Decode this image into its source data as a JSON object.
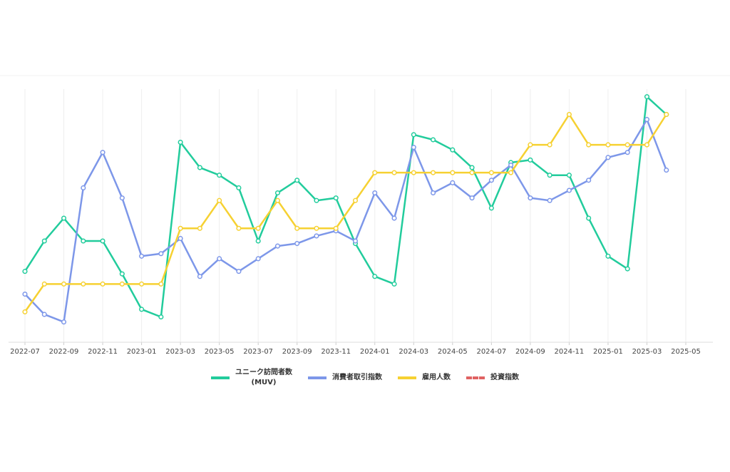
{
  "chart_data": {
    "type": "line",
    "x": [
      "2022-07",
      "2022-08",
      "2022-09",
      "2022-10",
      "2022-11",
      "2022-12",
      "2023-01",
      "2023-02",
      "2023-03",
      "2023-04",
      "2023-05",
      "2023-06",
      "2023-07",
      "2023-08",
      "2023-09",
      "2023-10",
      "2023-11",
      "2023-12",
      "2024-01",
      "2024-02",
      "2024-03",
      "2024-04",
      "2024-05",
      "2024-06",
      "2024-07",
      "2024-08",
      "2024-09",
      "2024-10",
      "2024-11",
      "2024-12",
      "2025-01",
      "2025-02",
      "2025-03",
      "2025-04"
    ],
    "xticks": [
      "2022-07",
      "2022-09",
      "2022-11",
      "2023-01",
      "2023-03",
      "2023-05",
      "2023-07",
      "2023-09",
      "2023-11",
      "2024-01",
      "2024-03",
      "2024-05",
      "2024-07",
      "2024-09",
      "2024-11",
      "2025-01",
      "2025-03",
      "2025-05"
    ],
    "ylim": [
      0,
      100
    ],
    "grid": true,
    "series": [
      {
        "name": "ユニーク訪問者数\n(MUV)",
        "color": "#22cc9c",
        "values": [
          28,
          40,
          49,
          40,
          40,
          27,
          13,
          10,
          79,
          69,
          66,
          61,
          40,
          59,
          64,
          56,
          57,
          39,
          26,
          23,
          82,
          80,
          76,
          69,
          53,
          71,
          72,
          66,
          66,
          49,
          34,
          29,
          97,
          90
        ]
      },
      {
        "name": "消費者取引指数",
        "color": "#7d97e9",
        "values": [
          19,
          11,
          8,
          61,
          75,
          57,
          34,
          35,
          41,
          26,
          33,
          28,
          33,
          38,
          39,
          42,
          44,
          40,
          59,
          49,
          77,
          59,
          63,
          57,
          64,
          70,
          57,
          56,
          60,
          64,
          73,
          75,
          88,
          68
        ]
      },
      {
        "name": "雇用人数",
        "color": "#f6d132",
        "values": [
          12,
          23,
          23,
          23,
          23,
          23,
          23,
          23,
          45,
          45,
          56,
          45,
          45,
          56,
          45,
          45,
          45,
          56,
          67,
          67,
          67,
          67,
          67,
          67,
          67,
          67,
          78,
          78,
          90,
          78,
          78,
          78,
          78,
          90
        ]
      },
      {
        "name": "投資指数",
        "color": "#e06262",
        "dashed": true,
        "values": [
          null,
          null,
          null,
          null,
          null,
          null,
          null,
          null,
          null,
          null,
          null,
          null,
          null,
          null,
          null,
          null,
          null,
          null,
          null,
          null,
          null,
          null,
          null,
          null,
          null,
          null,
          null,
          null,
          null,
          null,
          null,
          null,
          null,
          null
        ]
      }
    ]
  }
}
